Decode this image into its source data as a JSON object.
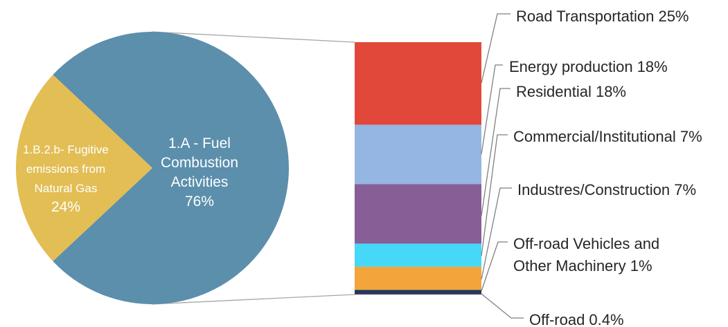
{
  "chart_data": {
    "type": "bar-of-pie",
    "pie": {
      "slices": [
        {
          "id": "fuel",
          "lines": [
            "1.A - Fuel",
            "Combustion",
            "Activities",
            "76%"
          ],
          "value": 76,
          "color": "#5b8fac"
        },
        {
          "id": "fugitive",
          "lines": [
            "1.B.2.b- Fugitive",
            "emissions from",
            "Natural Gas",
            "24%"
          ],
          "value": 24,
          "color": "#e2be54"
        }
      ]
    },
    "bar": {
      "segments": [
        {
          "id": "road",
          "lines": [
            "Road Transportation 25%"
          ],
          "value": 25,
          "color": "#e2483a"
        },
        {
          "id": "energy",
          "lines": [
            "Energy production 18%"
          ],
          "value": 18,
          "color": "#95b5e2"
        },
        {
          "id": "residential",
          "lines": [
            "Residential 18%"
          ],
          "value": 18,
          "color": "#875e96"
        },
        {
          "id": "commercial",
          "lines": [
            "Commercial/Institutional 7%"
          ],
          "value": 7,
          "color": "#46d8f8"
        },
        {
          "id": "industries",
          "lines": [
            "Industres/Construction 7%"
          ],
          "value": 7,
          "color": "#f3a43b"
        },
        {
          "id": "offroad-vehicles",
          "lines": [
            "Off-road Vehicles and",
            "Other Machinery 1%"
          ],
          "value": 1,
          "color": "#1f3a5a"
        },
        {
          "id": "offroad",
          "lines": [
            "Off-road 0.4%"
          ],
          "value": 0.4,
          "color": "#3a2f55"
        }
      ]
    },
    "colors": {
      "connector": "#a6a6a6",
      "leader": "#7f7f7f"
    }
  }
}
